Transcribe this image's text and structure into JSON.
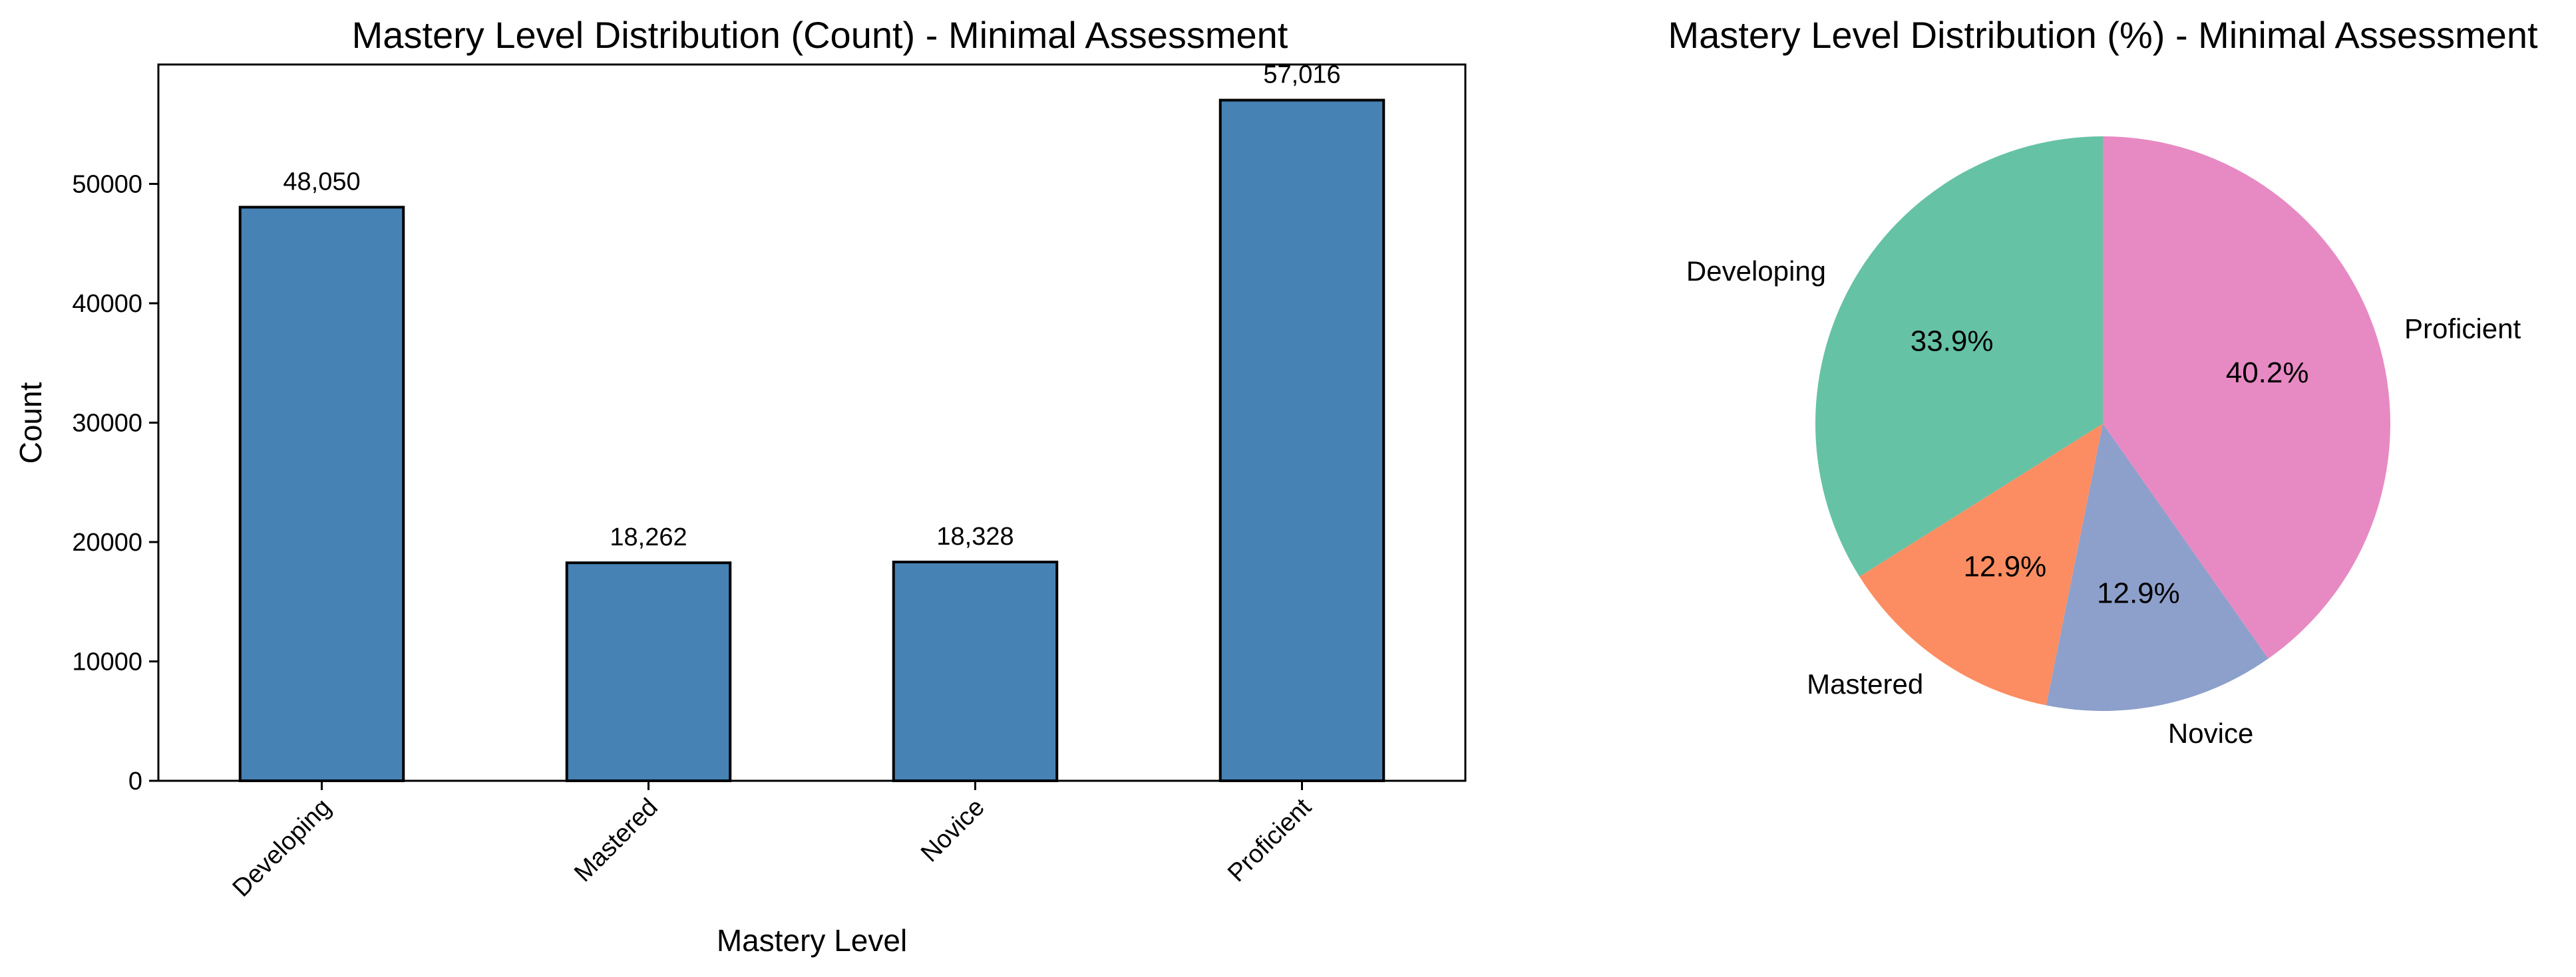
{
  "chart_data": [
    {
      "type": "bar",
      "title": "Mastery Level Distribution (Count) - Minimal Assessment",
      "xlabel": "Mastery Level",
      "ylabel": "Count",
      "categories": [
        "Developing",
        "Mastered",
        "Novice",
        "Proficient"
      ],
      "values": [
        48050,
        18262,
        18328,
        57016
      ],
      "value_labels": [
        "48,050",
        "18,262",
        "18,328",
        "57,016"
      ],
      "ylim": [
        0,
        60000
      ],
      "yticks": [
        0,
        10000,
        20000,
        30000,
        40000,
        50000
      ],
      "ytick_labels": [
        "0",
        "10000",
        "20000",
        "30000",
        "40000",
        "50000"
      ],
      "bar_color": "#4682b4",
      "edge_color": "#000000",
      "grid": false
    },
    {
      "type": "pie",
      "title": "Mastery Level Distribution (%) - Minimal Assessment",
      "labels": [
        "Developing",
        "Mastered",
        "Novice",
        "Proficient"
      ],
      "percent_labels": [
        "33.9%",
        "12.9%",
        "12.9%",
        "40.2%"
      ],
      "values": [
        33.9,
        12.9,
        12.9,
        40.2
      ],
      "colors": [
        "#66c2a5",
        "#fc8d62",
        "#8da0cb",
        "#e78ac3"
      ],
      "start_angle_deg": 90,
      "direction": "counterclockwise"
    }
  ]
}
